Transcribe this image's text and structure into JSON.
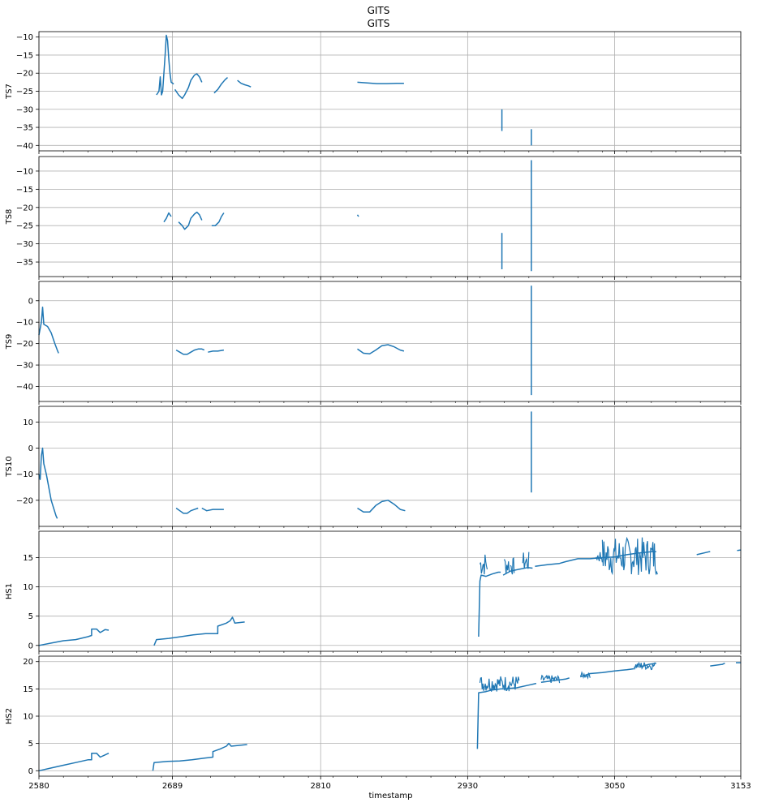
{
  "figure": {
    "title_top": "GITS",
    "title_bottom": "GITS",
    "xlabel": "timestamp"
  },
  "chart_data": {
    "type": "line",
    "title": "GITS",
    "xlabel": "timestamp",
    "xlim": [
      2580,
      3153
    ],
    "x_ticks": [
      2580,
      2689,
      2810,
      2930,
      3050,
      3153
    ],
    "grid": true,
    "color": "#1f77b4",
    "panels": [
      {
        "name": "TS7",
        "ylabel": "TS7",
        "ylim": [
          -41.5,
          -8.5
        ],
        "yticks": [
          -10,
          -15,
          -20,
          -25,
          -30,
          -35,
          -40
        ],
        "segments": [
          [
            [
              2676,
              -26
            ],
            [
              2678,
              -25
            ],
            [
              2679,
              -21
            ],
            [
              2680,
              -26
            ],
            [
              2681,
              -25
            ],
            [
              2683,
              -15
            ],
            [
              2684,
              -9.5
            ],
            [
              2685,
              -11
            ],
            [
              2686,
              -16
            ],
            [
              2687,
              -20
            ],
            [
              2688,
              -22.5
            ],
            [
              2690,
              -23
            ]
          ],
          [
            [
              2691,
              -24.5
            ],
            [
              2694,
              -26
            ],
            [
              2697,
              -27
            ],
            [
              2699,
              -26
            ],
            [
              2702,
              -24
            ],
            [
              2704,
              -22
            ],
            [
              2707,
              -20.5
            ],
            [
              2709,
              -20.2
            ],
            [
              2711,
              -21
            ],
            [
              2713,
              -22.5
            ]
          ],
          [
            [
              2723,
              -25.5
            ],
            [
              2726,
              -24.5
            ],
            [
              2729,
              -23
            ],
            [
              2732,
              -21.8
            ],
            [
              2734,
              -21.2
            ]
          ],
          [
            [
              2742,
              -22
            ],
            [
              2745,
              -22.8
            ],
            [
              2748,
              -23.2
            ],
            [
              2751,
              -23.5
            ],
            [
              2753,
              -23.8
            ]
          ],
          [
            [
              2840,
              -22.5
            ],
            [
              2848,
              -22.7
            ],
            [
              2856,
              -22.9
            ],
            [
              2864,
              -22.9
            ],
            [
              2872,
              -22.8
            ],
            [
              2878,
              -22.8
            ]
          ],
          [
            [
              2958,
              -30
            ],
            [
              2958,
              -36
            ]
          ],
          [
            [
              2982,
              -35.5
            ],
            [
              2982,
              -40
            ]
          ]
        ]
      },
      {
        "name": "TS8",
        "ylabel": "TS8",
        "ylim": [
          -39,
          -6
        ],
        "yticks": [
          -10,
          -15,
          -20,
          -25,
          -30,
          -35
        ],
        "segments": [
          [
            [
              2682,
              -24
            ],
            [
              2684,
              -23
            ],
            [
              2686,
              -21.5
            ],
            [
              2688,
              -22.5
            ]
          ],
          [
            [
              2694,
              -24
            ],
            [
              2697,
              -25
            ],
            [
              2699,
              -26
            ],
            [
              2702,
              -25
            ],
            [
              2704,
              -23
            ],
            [
              2707,
              -21.8
            ],
            [
              2709,
              -21.3
            ],
            [
              2711,
              -22
            ],
            [
              2713,
              -23.5
            ]
          ],
          [
            [
              2721,
              -25
            ],
            [
              2724,
              -25
            ],
            [
              2727,
              -24
            ],
            [
              2729,
              -22.5
            ],
            [
              2731,
              -21.5
            ]
          ],
          [
            [
              2840,
              -22
            ],
            [
              2841,
              -22.5
            ]
          ],
          [
            [
              2958,
              -27
            ],
            [
              2958,
              -37
            ]
          ],
          [
            [
              2982,
              -7
            ],
            [
              2982,
              -37.5
            ]
          ]
        ]
      },
      {
        "name": "TS9",
        "ylabel": "TS9",
        "ylim": [
          -47,
          9
        ],
        "yticks": [
          0,
          -10,
          -20,
          -30,
          -40
        ],
        "segments": [
          [
            [
              2580,
              -16
            ],
            [
              2582,
              -10
            ],
            [
              2583,
              -3
            ],
            [
              2584,
              -11
            ],
            [
              2587,
              -12
            ],
            [
              2590,
              -15
            ],
            [
              2593,
              -20
            ],
            [
              2595,
              -23
            ],
            [
              2596,
              -24.5
            ]
          ],
          [
            [
              2692,
              -23
            ],
            [
              2695,
              -24
            ],
            [
              2698,
              -25
            ],
            [
              2701,
              -25
            ],
            [
              2704,
              -24
            ],
            [
              2707,
              -23
            ],
            [
              2710,
              -22.5
            ],
            [
              2713,
              -22.5
            ],
            [
              2715,
              -23
            ]
          ],
          [
            [
              2718,
              -24
            ],
            [
              2722,
              -23.5
            ],
            [
              2726,
              -23.5
            ],
            [
              2731,
              -23
            ]
          ],
          [
            [
              2840,
              -22.5
            ],
            [
              2845,
              -24.5
            ],
            [
              2850,
              -24.8
            ],
            [
              2855,
              -23
            ],
            [
              2860,
              -21
            ],
            [
              2865,
              -20.5
            ],
            [
              2870,
              -21.5
            ],
            [
              2875,
              -23
            ],
            [
              2878,
              -23.5
            ]
          ],
          [
            [
              2982,
              7
            ],
            [
              2982,
              -44
            ]
          ]
        ]
      },
      {
        "name": "TS10",
        "ylabel": "TS10",
        "ylim": [
          -30,
          16
        ],
        "yticks": [
          10,
          0,
          -10,
          -20
        ],
        "segments": [
          [
            [
              2580,
              -10
            ],
            [
              2581,
              -12
            ],
            [
              2582,
              -3
            ],
            [
              2583,
              0
            ],
            [
              2584,
              -6
            ],
            [
              2586,
              -10
            ],
            [
              2588,
              -15
            ],
            [
              2590,
              -20
            ],
            [
              2592,
              -23
            ],
            [
              2594,
              -26
            ],
            [
              2595,
              -27
            ]
          ],
          [
            [
              2692,
              -23
            ],
            [
              2695,
              -24
            ],
            [
              2698,
              -25
            ],
            [
              2701,
              -25
            ],
            [
              2704,
              -24
            ],
            [
              2707,
              -23.5
            ],
            [
              2710,
              -23
            ]
          ],
          [
            [
              2713,
              -23
            ],
            [
              2717,
              -24
            ],
            [
              2722,
              -23.5
            ],
            [
              2726,
              -23.5
            ],
            [
              2731,
              -23.5
            ]
          ],
          [
            [
              2840,
              -23
            ],
            [
              2845,
              -24.5
            ],
            [
              2850,
              -24.5
            ],
            [
              2855,
              -22
            ],
            [
              2860,
              -20.5
            ],
            [
              2865,
              -20
            ],
            [
              2870,
              -21.5
            ],
            [
              2875,
              -23.5
            ],
            [
              2879,
              -24
            ]
          ],
          [
            [
              2982,
              14
            ],
            [
              2982,
              -17
            ]
          ]
        ]
      },
      {
        "name": "HS1",
        "ylabel": "HS1",
        "ylim": [
          -1,
          19.5
        ],
        "yticks": [
          15,
          10,
          5,
          0
        ],
        "segments": [
          [
            [
              2580,
              0
            ],
            [
              2590,
              0.4
            ],
            [
              2600,
              0.8
            ],
            [
              2610,
              1
            ],
            [
              2620,
              1.5
            ],
            [
              2623,
              1.7
            ],
            [
              2623,
              2.8
            ],
            [
              2627,
              2.8
            ],
            [
              2630,
              2.2
            ],
            [
              2634,
              2.7
            ],
            [
              2637,
              2.6
            ]
          ],
          [
            [
              2674,
              0
            ],
            [
              2676,
              1
            ],
            [
              2686,
              1.2
            ],
            [
              2696,
              1.5
            ],
            [
              2706,
              1.8
            ],
            [
              2716,
              2
            ],
            [
              2726,
              2
            ],
            [
              2726,
              3.3
            ],
            [
              2733,
              3.8
            ],
            [
              2736,
              4.2
            ],
            [
              2738,
              4.8
            ],
            [
              2740,
              3.8
            ],
            [
              2748,
              4
            ]
          ],
          [
            [
              2939,
              1.5
            ],
            [
              2940,
              11
            ],
            [
              2941,
              12
            ],
            [
              2945,
              11.8
            ],
            [
              2950,
              12.2
            ],
            [
              2955,
              12.5
            ],
            [
              2957,
              12.5
            ]
          ],
          [
            [
              2959,
              12
            ],
            [
              2965,
              12.7
            ],
            [
              2972,
              13
            ],
            [
              2979,
              13.3
            ],
            [
              2983,
              13.2
            ]
          ],
          [
            [
              2985,
              13.5
            ],
            [
              2995,
              13.8
            ],
            [
              3005,
              14
            ],
            [
              3010,
              14.3
            ],
            [
              3020,
              14.8
            ],
            [
              3030,
              14.8
            ],
            [
              3040,
              15
            ],
            [
              3050,
              15.1
            ],
            [
              3060,
              15.5
            ],
            [
              3070,
              15.8
            ],
            [
              3080,
              16
            ],
            [
              3084,
              16
            ]
          ],
          [
            [
              3117,
              15.5
            ],
            [
              3127,
              16
            ],
            [
              3128,
              16
            ]
          ],
          [
            [
              3150,
              16.2
            ],
            [
              3153,
              16.3
            ]
          ]
        ]
      },
      {
        "name": "HS2",
        "ylabel": "HS2",
        "ylim": [
          -1,
          21
        ],
        "yticks": [
          20,
          15,
          10,
          5,
          0
        ],
        "segments": [
          [
            [
              2580,
              0
            ],
            [
              2590,
              0.5
            ],
            [
              2600,
              1
            ],
            [
              2610,
              1.5
            ],
            [
              2620,
              2
            ],
            [
              2623,
              2
            ],
            [
              2623,
              3.2
            ],
            [
              2627,
              3.2
            ],
            [
              2630,
              2.5
            ],
            [
              2635,
              3
            ],
            [
              2637,
              3.2
            ]
          ],
          [
            [
              2673,
              0
            ],
            [
              2674,
              1.5
            ],
            [
              2685,
              1.7
            ],
            [
              2695,
              1.8
            ],
            [
              2705,
              2
            ],
            [
              2715,
              2.3
            ],
            [
              2722,
              2.5
            ],
            [
              2722,
              3.5
            ],
            [
              2728,
              4
            ],
            [
              2733,
              4.5
            ],
            [
              2735,
              5
            ],
            [
              2737,
              4.5
            ],
            [
              2750,
              4.8
            ]
          ],
          [
            [
              2938,
              4
            ],
            [
              2939,
              14.3
            ],
            [
              2945,
              14.5
            ],
            [
              2950,
              14.8
            ],
            [
              2957,
              15
            ],
            [
              2960,
              15
            ],
            [
              2970,
              15.2
            ],
            [
              2980,
              15.7
            ],
            [
              2986,
              16
            ]
          ],
          [
            [
              2990,
              16.2
            ],
            [
              3000,
              16.5
            ],
            [
              3010,
              16.8
            ],
            [
              3013,
              17
            ]
          ],
          [
            [
              3022,
              17.2
            ],
            [
              3030,
              17.8
            ],
            [
              3040,
              18
            ],
            [
              3050,
              18.3
            ],
            [
              3060,
              18.5
            ],
            [
              3066,
              18.7
            ]
          ],
          [
            [
              3070,
              19
            ],
            [
              3078,
              19.5
            ],
            [
              3084,
              19.7
            ]
          ],
          [
            [
              3128,
              19.2
            ],
            [
              3138,
              19.5
            ],
            [
              3140,
              19.7
            ]
          ],
          [
            [
              3149,
              19.8
            ],
            [
              3153,
              19.8
            ]
          ]
        ]
      }
    ],
    "noise_regions": [
      {
        "panel": "HS1",
        "ranges": [
          [
            2940,
            2946,
            11.8,
            16
          ],
          [
            2960,
            2964,
            12,
            15.5
          ],
          [
            2965,
            2968,
            12,
            15
          ],
          [
            2975,
            2980,
            12.5,
            16
          ],
          [
            3035,
            3040,
            14,
            16.5
          ],
          [
            3040,
            3085,
            12,
            18.5
          ]
        ]
      },
      {
        "panel": "HS2",
        "ranges": [
          [
            2940,
            2972,
            14.5,
            17.5
          ],
          [
            2990,
            3005,
            16,
            17.5
          ],
          [
            3022,
            3030,
            17,
            18
          ],
          [
            3066,
            3083,
            18.5,
            20
          ]
        ]
      }
    ]
  }
}
